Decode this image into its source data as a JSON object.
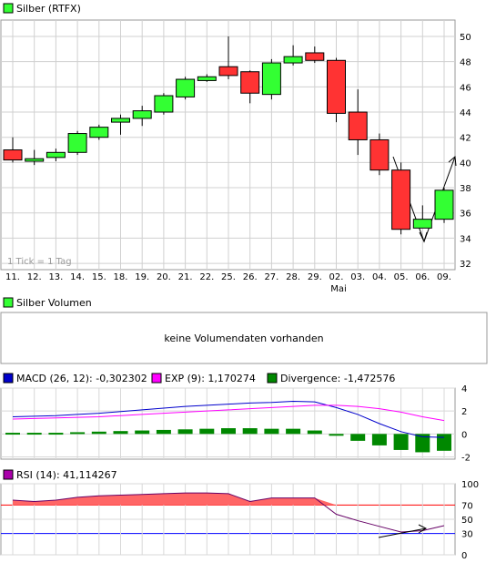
{
  "price": {
    "legend": "Silber (RTFX)",
    "watermark": "1 Tick = 1 Tag",
    "ylim": [
      31.5,
      51.3
    ],
    "yticks": [
      32,
      34,
      36,
      38,
      40,
      42,
      44,
      46,
      48,
      50
    ],
    "xlabels": [
      "11.",
      "12.",
      "13.",
      "14.",
      "15.",
      "18.",
      "19.",
      "20.",
      "21.",
      "22.",
      "25.",
      "26.",
      "27.",
      "28.",
      "29.",
      "02.",
      "03.",
      "04.",
      "05.",
      "06.",
      "09."
    ],
    "month_label": "Mai",
    "colors": {
      "up": "#33ff33",
      "down": "#ff3333",
      "grid": "#d0d0d0"
    }
  },
  "volume": {
    "legend": "Silber Volumen",
    "message": "keine Volumendaten vorhanden"
  },
  "macd": {
    "legend_macd": "MACD (26, 12): -0,302302",
    "legend_exp": "EXP (9): 1,170274",
    "legend_div": "Divergence: -1,472576",
    "ylim": [
      -2.2,
      4
    ],
    "yticks": [
      4,
      2,
      0,
      -2
    ],
    "colors": {
      "macd": "#0000cc",
      "exp": "#ff00ff",
      "div": "#008800"
    }
  },
  "rsi": {
    "legend": "RSI (14): 41,114267",
    "ylim": [
      0,
      100
    ],
    "yticks": [
      100,
      70,
      50,
      30,
      0
    ],
    "colors": {
      "fill": "#ff6666",
      "line": "#660066",
      "upper": "#ff0000",
      "lower": "#0000ff"
    }
  },
  "chart_data": [
    {
      "type": "candlestick",
      "title": "Silber (RTFX)",
      "categories": [
        "11.",
        "12.",
        "13.",
        "14.",
        "15.",
        "18.",
        "19.",
        "20.",
        "21.",
        "22.",
        "25.",
        "26.",
        "27.",
        "28.",
        "29.",
        "02.",
        "03.",
        "04.",
        "05.",
        "06.",
        "09."
      ],
      "open": [
        41.0,
        40.1,
        40.4,
        40.8,
        42.0,
        43.2,
        43.5,
        44.0,
        45.2,
        46.5,
        47.6,
        47.2,
        45.4,
        47.9,
        48.7,
        48.1,
        44.0,
        41.8,
        39.4,
        34.8,
        35.5
      ],
      "high": [
        42.0,
        41.0,
        41.1,
        42.5,
        43.0,
        43.8,
        44.5,
        45.5,
        46.8,
        47.0,
        50.0,
        47.3,
        48.2,
        49.3,
        49.2,
        48.3,
        45.8,
        42.3,
        40.0,
        36.6,
        38.0
      ],
      "low": [
        40.0,
        39.8,
        40.1,
        40.6,
        41.8,
        42.2,
        42.9,
        43.8,
        45.0,
        46.4,
        46.6,
        44.7,
        45.0,
        47.7,
        47.9,
        43.2,
        40.6,
        39.0,
        34.3,
        34.8,
        35.2
      ],
      "close": [
        40.2,
        40.3,
        40.8,
        42.3,
        42.8,
        43.5,
        44.1,
        45.3,
        46.6,
        46.8,
        46.9,
        45.5,
        47.9,
        48.4,
        48.1,
        43.9,
        41.8,
        39.4,
        34.7,
        35.5,
        37.8
      ],
      "ylim": [
        31.5,
        51.3
      ]
    },
    {
      "type": "line",
      "title": "MACD (26, 12)",
      "series": [
        {
          "name": "MACD (26, 12)",
          "values": [
            1.5,
            1.55,
            1.6,
            1.7,
            1.8,
            1.95,
            2.1,
            2.25,
            2.4,
            2.5,
            2.6,
            2.7,
            2.75,
            2.85,
            2.8,
            2.3,
            1.7,
            0.9,
            0.2,
            -0.25,
            -0.3
          ]
        },
        {
          "name": "EXP (9)",
          "values": [
            1.3,
            1.35,
            1.4,
            1.45,
            1.5,
            1.6,
            1.7,
            1.8,
            1.9,
            2.0,
            2.1,
            2.2,
            2.3,
            2.4,
            2.5,
            2.5,
            2.4,
            2.2,
            1.9,
            1.5,
            1.17
          ]
        },
        {
          "name": "Divergence",
          "type": "bar",
          "values": [
            0.1,
            0.1,
            0.1,
            0.15,
            0.2,
            0.25,
            0.3,
            0.35,
            0.4,
            0.45,
            0.5,
            0.5,
            0.45,
            0.45,
            0.3,
            -0.1,
            -0.6,
            -1.0,
            -1.4,
            -1.6,
            -1.47
          ]
        }
      ],
      "ylim": [
        -2.2,
        4
      ]
    },
    {
      "type": "area",
      "title": "RSI (14)",
      "series": [
        {
          "name": "RSI (14)",
          "values": [
            77,
            75,
            77,
            81,
            83,
            84,
            85,
            86,
            87,
            87,
            86,
            75,
            80,
            80,
            80,
            57,
            48,
            40,
            32,
            34,
            41
          ]
        }
      ],
      "ylim": [
        0,
        100
      ]
    }
  ]
}
